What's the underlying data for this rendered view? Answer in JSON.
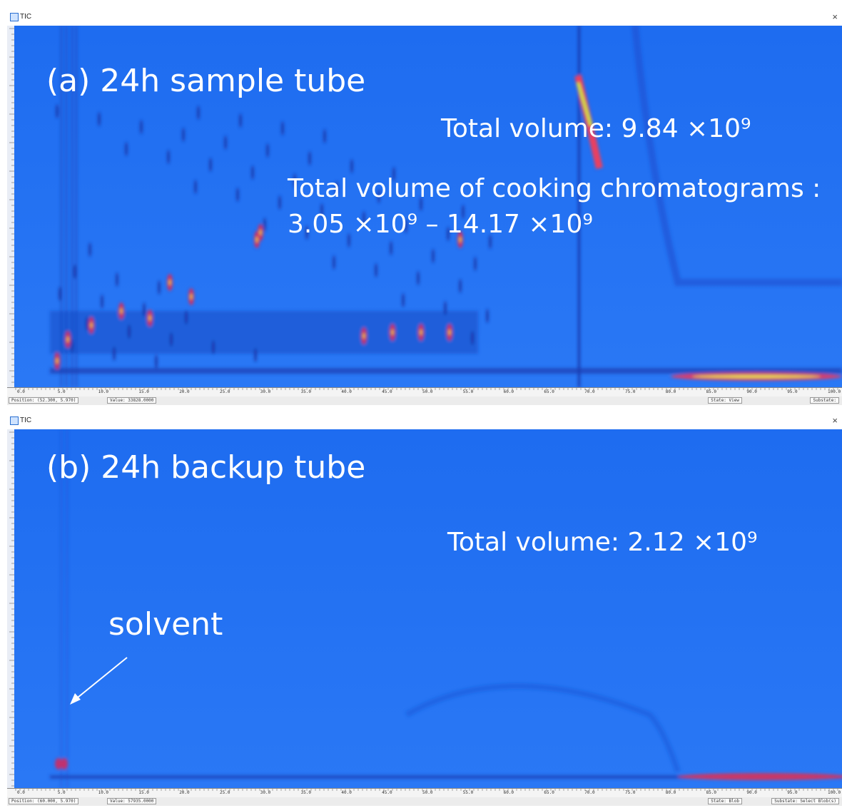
{
  "panels": [
    {
      "window_title": "TIC",
      "close": "×",
      "annotations": [
        "(a) 24h sample tube",
        "Total volume: 9.84 ×10⁹",
        "Total volume of cooking chromatograms :",
        "3.05 ×10⁹ – 14.17 ×10⁹"
      ],
      "ticks": [
        "0.0",
        "5.0",
        "10.0",
        "15.0",
        "20.0",
        "25.0",
        "30.0",
        "35.0",
        "40.0",
        "45.0",
        "50.0",
        "55.0",
        "60.0",
        "65.0",
        "70.0",
        "75.0",
        "80.0",
        "85.0",
        "90.0",
        "95.0",
        "100.0"
      ],
      "status": {
        "position": "Position: (52.300, 5.970)",
        "value": "Value: 33828.0000",
        "state": "State: View",
        "substate": "Substate:"
      }
    },
    {
      "window_title": "TIC",
      "close": "×",
      "annotations": [
        "(b) 24h backup tube",
        "Total volume: 2.12 ×10⁹",
        "solvent"
      ],
      "ticks": [
        "0.0",
        "5.0",
        "10.0",
        "15.0",
        "20.0",
        "25.0",
        "30.0",
        "35.0",
        "40.0",
        "45.0",
        "50.0",
        "55.0",
        "60.0",
        "65.0",
        "70.0",
        "75.0",
        "80.0",
        "85.0",
        "90.0",
        "95.0",
        "100.0"
      ],
      "status": {
        "position": "Position: (60.000, 5.970)",
        "value": "Value: 57935.0000",
        "state": "State: Blob",
        "substate": "Substate: Select Blob(s)"
      }
    }
  ]
}
